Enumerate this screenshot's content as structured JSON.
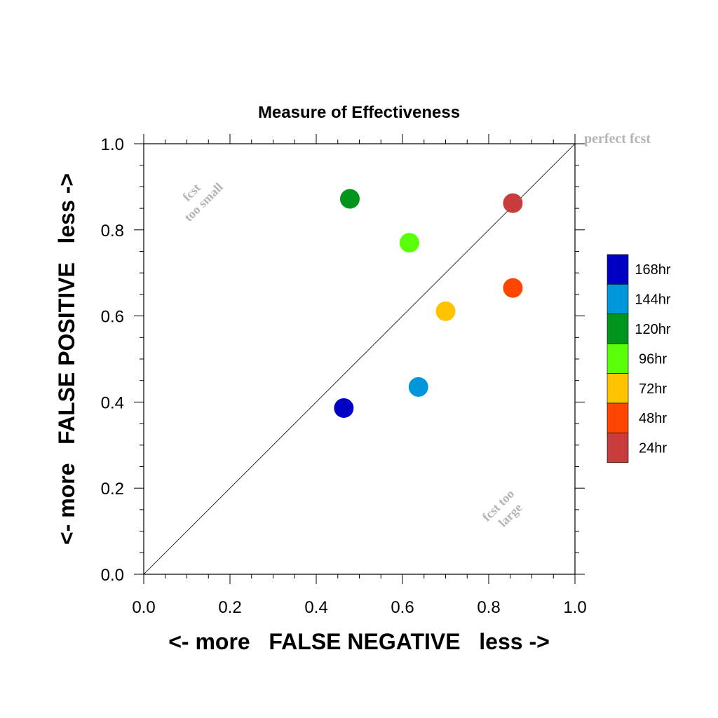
{
  "chart_data": {
    "type": "scatter",
    "title": "Measure of Effectiveness",
    "xlabel": "<- more   FALSE NEGATIVE   less ->",
    "ylabel": "<- more   FALSE POSITIVE   less ->",
    "xlim": [
      0.0,
      1.0
    ],
    "ylim": [
      0.0,
      1.0
    ],
    "x_ticks": [
      "0.0",
      "0.2",
      "0.4",
      "0.6",
      "0.8",
      "1.0"
    ],
    "y_ticks": [
      "0.0",
      "0.2",
      "0.4",
      "0.6",
      "0.8",
      "1.0"
    ],
    "grid": false,
    "diagonal_line": true,
    "annotations": {
      "perfect": "perfect fcst",
      "small_line1": "fcst",
      "small_line2": "too small",
      "large_line1": "fcst too",
      "large_line2": "large"
    },
    "legend_position": "right",
    "legend": [
      {
        "label": "168hr",
        "color": "#0000c4"
      },
      {
        "label": "144hr",
        "color": "#0096dc"
      },
      {
        "label": "120hr",
        "color": "#00961e"
      },
      {
        "label": "96hr",
        "color": "#5aff0a"
      },
      {
        "label": "72hr",
        "color": "#ffc300"
      },
      {
        "label": "48hr",
        "color": "#ff4600"
      },
      {
        "label": "24hr",
        "color": "#c83c3c"
      }
    ],
    "series": [
      {
        "name": "168hr",
        "x": 0.464,
        "y": 0.386,
        "color": "#0000c4"
      },
      {
        "name": "144hr",
        "x": 0.637,
        "y": 0.435,
        "color": "#0096dc"
      },
      {
        "name": "120hr",
        "x": 0.478,
        "y": 0.872,
        "color": "#00961e"
      },
      {
        "name": "96hr",
        "x": 0.616,
        "y": 0.77,
        "color": "#5aff0a"
      },
      {
        "name": "72hr",
        "x": 0.7,
        "y": 0.611,
        "color": "#ffc300"
      },
      {
        "name": "48hr",
        "x": 0.856,
        "y": 0.665,
        "color": "#ff4600"
      },
      {
        "name": "24hr",
        "x": 0.856,
        "y": 0.862,
        "color": "#c83c3c"
      }
    ]
  }
}
